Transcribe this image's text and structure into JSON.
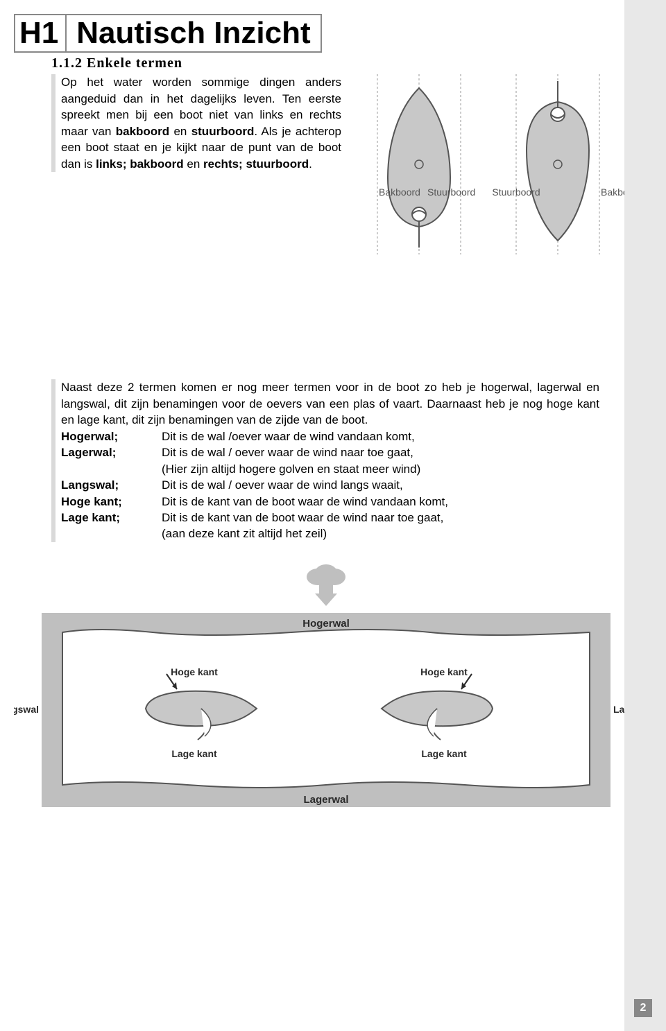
{
  "page": {
    "chapter_badge": "H1",
    "chapter_title": "Nautisch Inzicht",
    "subsection": "1.1.2 Enkele termen",
    "page_number": "2"
  },
  "intro": {
    "text_html": "Op het water worden sommige dingen anders aangeduid dan in het dagelijks leven. Ten eerste spreekt men bij een boot niet van links en rechts maar van <b>bakboord</b> en <b>stuurboord</b>. Als je achterop een boot staat en je kijkt naar de punt van de boot dan is <b>links; bakboord</b> en <b>rechts; stuurboord</b>."
  },
  "boat_diagram": {
    "labels": {
      "bakboord": "Bakboord",
      "stuurboord": "Stuurboord"
    },
    "colors": {
      "hull_fill": "#c8c8c8",
      "hull_stroke": "#555555",
      "dashed": "#999999",
      "label_color": "#555555"
    },
    "label_fontsize": 14
  },
  "definitions": {
    "intro": "Naast deze 2 termen komen er nog meer termen voor in de boot zo heb je hogerwal, lagerwal en langswal, dit zijn benamingen voor de oevers van een plas of vaart. Daarnaast heb je nog hoge kant en lage kant, dit zijn benamingen van de zijde van de boot.",
    "items": [
      {
        "term": "Hogerwal;",
        "desc": "Dit is de wal /oever waar de wind vandaan komt,"
      },
      {
        "term": "Lagerwal;",
        "desc": "Dit is de wal / oever waar de wind naar toe gaat,"
      },
      {
        "term": "",
        "desc": "(Hier zijn altijd hogere golven en staat meer wind)"
      },
      {
        "term": "Langswal;",
        "desc": "Dit is de wal / oever waar de wind langs waait,"
      },
      {
        "term": "Hoge kant;",
        "desc": "Dit is de kant van de boot waar de wind vandaan komt,"
      },
      {
        "term": "Lage kant;",
        "desc": "Dit is de kant van de boot waar de wind naar toe gaat,"
      },
      {
        "term": "",
        "desc": "(aan deze kant zit altijd het zeil)"
      }
    ]
  },
  "shore_diagram": {
    "labels": {
      "hogerwal": "Hogerwal",
      "lagerwal": "Lagerwal",
      "langswal": "Langswal",
      "hoge_kant": "Hoge kant",
      "lage_kant": "Lage kant"
    },
    "colors": {
      "frame_fill": "#bfbfbf",
      "water_fill": "#ffffff",
      "water_stroke": "#555555",
      "boat_fill": "#c8c8c8",
      "boat_stroke": "#555555",
      "cloud_fill": "#bfbfbf",
      "text": "#2a2a2a"
    },
    "label_fontsize_main": 15,
    "label_fontsize_small": 14
  }
}
